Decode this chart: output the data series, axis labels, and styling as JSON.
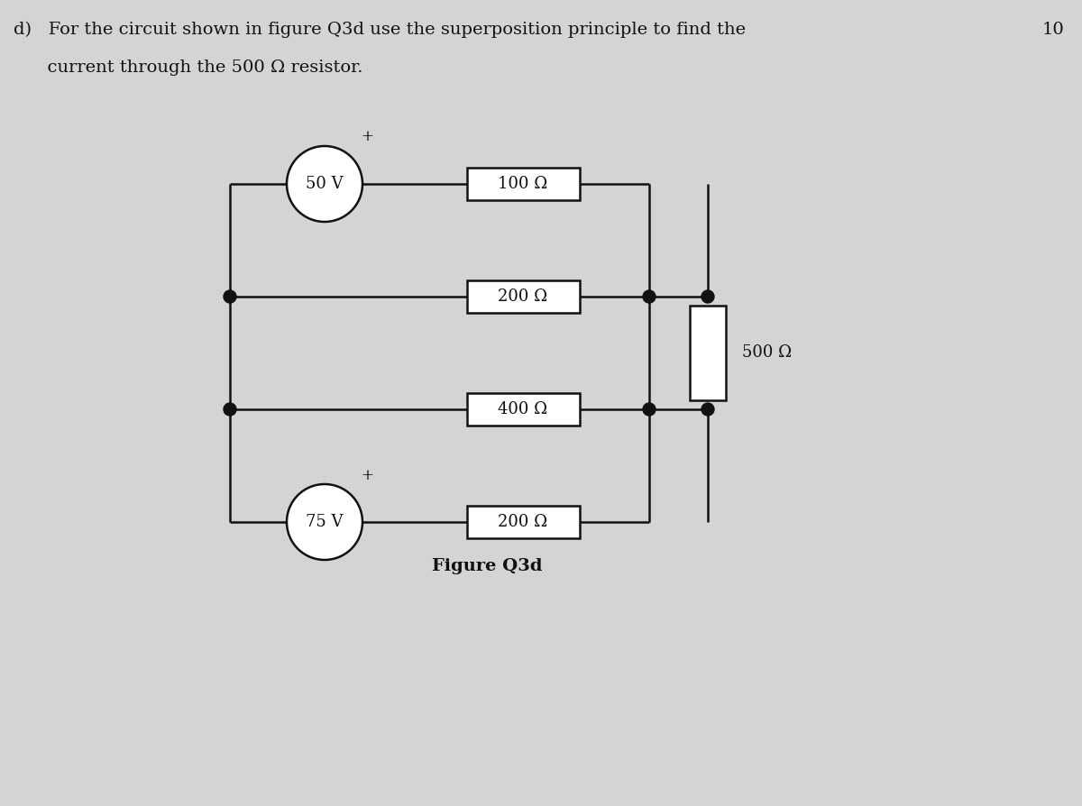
{
  "bg_color": "#d4d4d4",
  "title_line1": "d)   For the circuit shown in figure Q3d use the superposition principle to find the",
  "title_line2": "      current through the 500 Ω resistor.",
  "marks_text": "10",
  "figure_label": "Figure Q3d",
  "source_50V": "50 V",
  "source_75V": "75 V",
  "res_100": "100 Ω",
  "res_200a": "200 Ω",
  "res_400": "400 Ω",
  "res_200b": "200 Ω",
  "res_500": "500 Ω",
  "line_color": "#111111",
  "fill_color": "#ffffff",
  "text_color": "#111111",
  "font_size_label": 13,
  "font_size_title": 14,
  "font_size_res": 13
}
